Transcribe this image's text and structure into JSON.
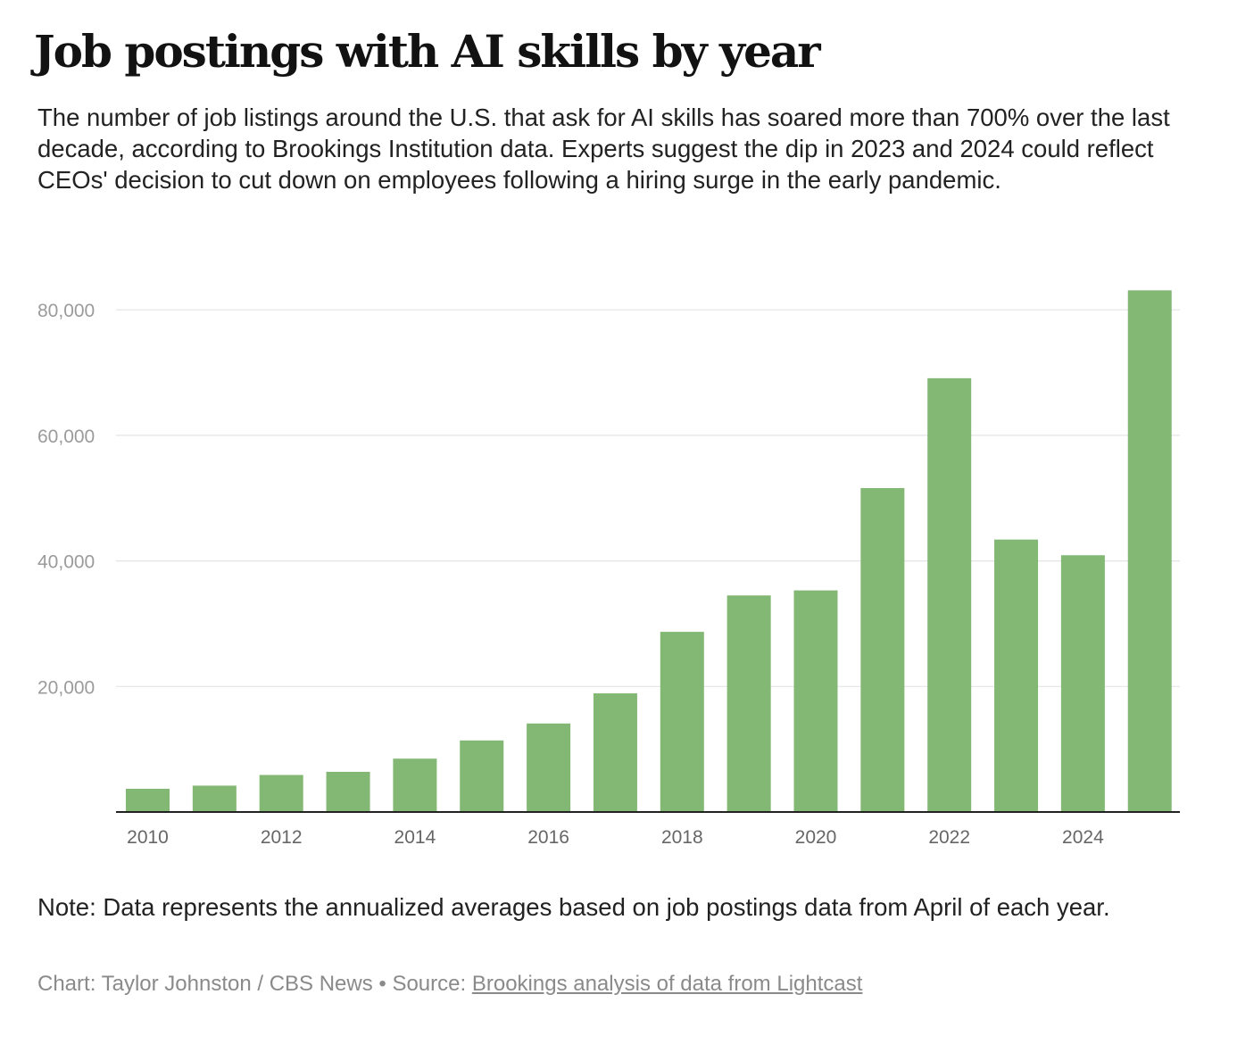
{
  "header": {
    "title": "Job postings with AI skills by year",
    "subtitle": "The number of job listings around the U.S. that ask for AI skills has soared more than 700% over the last decade, according to Brookings Institution data. Experts suggest the dip in 2023 and 2024 could reflect CEOs' decision to cut down on employees following a hiring surge in the early pandemic."
  },
  "footer": {
    "note": "Note: Data represents the annualized averages based on job postings data from April of each year.",
    "credit_prefix": "Chart: Taylor Johnston / CBS News • Source: ",
    "source_link_text": "Brookings analysis of data from Lightcast"
  },
  "colors": {
    "bar": "#83b874",
    "gridline": "#e4e4e4",
    "axis": "#222222",
    "tick_label": "#9b9b9b",
    "x_tick_label": "#666666"
  },
  "chart_data": {
    "type": "bar",
    "title": "Job postings with AI skills by year",
    "xlabel": "",
    "ylabel": "",
    "categories": [
      2010,
      2011,
      2012,
      2013,
      2014,
      2015,
      2016,
      2017,
      2018,
      2019,
      2020,
      2021,
      2022,
      2023,
      2024,
      2025
    ],
    "values": [
      3700,
      4200,
      5900,
      6400,
      8500,
      11400,
      14100,
      18900,
      28700,
      34500,
      35300,
      51600,
      69100,
      43400,
      40900,
      83100
    ],
    "x_tick_labels": [
      "2010",
      "2012",
      "2014",
      "2016",
      "2018",
      "2020",
      "2022",
      "2024"
    ],
    "y_ticks": [
      20000,
      40000,
      60000,
      80000
    ],
    "y_tick_labels": [
      "20,000",
      "40,000",
      "60,000",
      "80,000"
    ],
    "ylim": [
      0,
      85000
    ],
    "grid": true,
    "legend": "none"
  }
}
